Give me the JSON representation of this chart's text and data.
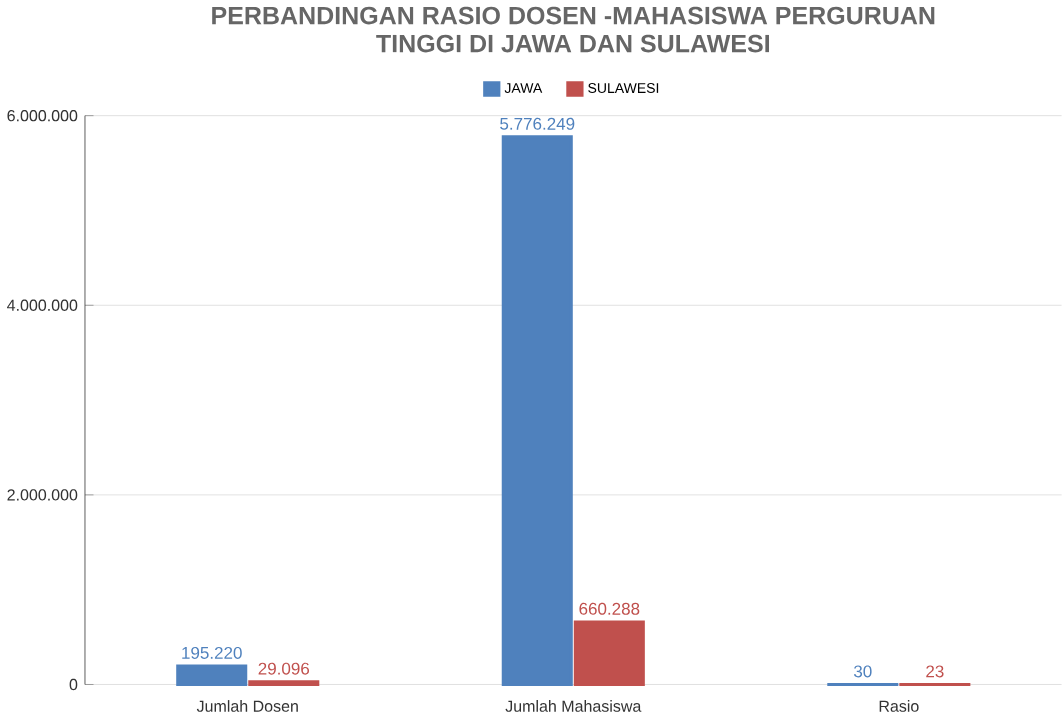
{
  "chart_data": {
    "type": "bar",
    "title": "PERBANDINGAN RASIO DOSEN -MAHASISWA PERGURUAN TINGGI DI JAWA DAN SULAWESI",
    "categories": [
      "Jumlah Dosen",
      "Jumlah Mahasiswa",
      "Rasio"
    ],
    "series": [
      {
        "name": "JAWA",
        "color": "#4f81bd",
        "values": [
          195220,
          5776249,
          30
        ],
        "value_labels": [
          "195.220",
          "5.776.249",
          "30"
        ]
      },
      {
        "name": "SULAWESI",
        "color": "#c0504d",
        "values": [
          29096,
          660288,
          23
        ],
        "value_labels": [
          "29.096",
          "660.288",
          "23"
        ]
      }
    ],
    "ylim": [
      0,
      6000000
    ],
    "yticks": [
      {
        "value": 0,
        "label": "0"
      },
      {
        "value": 2000000,
        "label": "2.000.000"
      },
      {
        "value": 4000000,
        "label": "4.000.000"
      },
      {
        "value": 6000000,
        "label": "6.000.000"
      }
    ],
    "grid": "y",
    "legend": "top"
  }
}
